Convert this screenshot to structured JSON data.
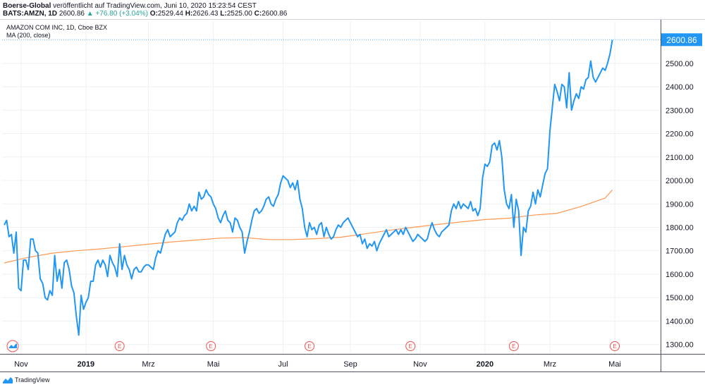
{
  "header": {
    "publisher": "Boerse-Global",
    "published_text": "veröffentlicht auf TradingView.com, Juni 10, 2020 15:23:54 CEST",
    "symbol": "BATS:AMZN, 1D",
    "last": "2600.86",
    "change": "▲ +76.80 (+3.04%)",
    "o_label": "O:",
    "o_value": "2529.44",
    "h_label": "H:",
    "h_value": "2626.43",
    "l_label": "L:",
    "l_value": "2525.00",
    "c_label": "C:",
    "c_value": "2600.86"
  },
  "legend": {
    "title": "AMAZON COM INC, 1D, Cboe BZX",
    "indicator": "MA (200, close)"
  },
  "footer": {
    "brand": "TradingView"
  },
  "colors": {
    "price_line": "#2196f3",
    "ma_line": "#ff9850",
    "price_badge": "#2196f3",
    "earnings": "#ef5350",
    "grid": "#eef0f3"
  },
  "chart_data": {
    "type": "line",
    "ylim": [
      1260,
      2680
    ],
    "xlim": [
      0,
      271
    ],
    "yticks": [
      "1300.00",
      "1400.00",
      "1500.00",
      "1600.00",
      "1700.00",
      "1800.00",
      "1900.00",
      "2000.00",
      "2100.00",
      "2200.00",
      "2300.00",
      "2400.00",
      "2500.00"
    ],
    "ytick_values": [
      1300,
      1400,
      1500,
      1600,
      1700,
      1800,
      1900,
      2000,
      2100,
      2200,
      2300,
      2400,
      2500
    ],
    "xticks": [
      {
        "label": "Nov",
        "x": 7,
        "bold": false
      },
      {
        "label": "2019",
        "x": 34,
        "bold": true
      },
      {
        "label": "Mrz",
        "x": 60,
        "bold": false
      },
      {
        "label": "Mai",
        "x": 87,
        "bold": false
      },
      {
        "label": "Jul",
        "x": 116,
        "bold": false
      },
      {
        "label": "Sep",
        "x": 144,
        "bold": false
      },
      {
        "label": "Nov",
        "x": 173,
        "bold": false
      },
      {
        "label": "2020",
        "x": 200,
        "bold": true
      },
      {
        "label": "Mrz",
        "x": 227,
        "bold": false
      },
      {
        "label": "Mai",
        "x": 254,
        "bold": false
      }
    ],
    "earnings_markers": [
      48,
      86,
      127,
      169,
      212,
      254
    ],
    "earnings_label": "E",
    "last_price_label": "2600.86",
    "last_price": 2600.86,
    "series": [
      {
        "name": "AMZN",
        "points": [
          [
            0,
            1810
          ],
          [
            1,
            1830
          ],
          [
            2,
            1760
          ],
          [
            3,
            1770
          ],
          [
            4,
            1690
          ],
          [
            5,
            1780
          ],
          [
            6,
            1540
          ],
          [
            7,
            1530
          ],
          [
            8,
            1660
          ],
          [
            9,
            1660
          ],
          [
            10,
            1620
          ],
          [
            11,
            1750
          ],
          [
            12,
            1750
          ],
          [
            13,
            1700
          ],
          [
            14,
            1690
          ],
          [
            15,
            1580
          ],
          [
            16,
            1560
          ],
          [
            17,
            1500
          ],
          [
            18,
            1490
          ],
          [
            19,
            1530
          ],
          [
            20,
            1510
          ],
          [
            21,
            1680
          ],
          [
            22,
            1570
          ],
          [
            23,
            1620
          ],
          [
            24,
            1540
          ],
          [
            25,
            1650
          ],
          [
            26,
            1660
          ],
          [
            27,
            1620
          ],
          [
            28,
            1550
          ],
          [
            29,
            1520
          ],
          [
            30,
            1420
          ],
          [
            31,
            1340
          ],
          [
            32,
            1510
          ],
          [
            33,
            1450
          ],
          [
            34,
            1480
          ],
          [
            35,
            1500
          ],
          [
            36,
            1570
          ],
          [
            37,
            1570
          ],
          [
            38,
            1640
          ],
          [
            39,
            1660
          ],
          [
            40,
            1630
          ],
          [
            41,
            1660
          ],
          [
            42,
            1640
          ],
          [
            43,
            1590
          ],
          [
            44,
            1680
          ],
          [
            45,
            1650
          ],
          [
            46,
            1630
          ],
          [
            47,
            1590
          ],
          [
            48,
            1730
          ],
          [
            49,
            1620
          ],
          [
            50,
            1680
          ],
          [
            51,
            1640
          ],
          [
            52,
            1620
          ],
          [
            53,
            1580
          ],
          [
            54,
            1620
          ],
          [
            55,
            1630
          ],
          [
            56,
            1610
          ],
          [
            57,
            1610
          ],
          [
            58,
            1630
          ],
          [
            59,
            1640
          ],
          [
            60,
            1640
          ],
          [
            61,
            1630
          ],
          [
            62,
            1620
          ],
          [
            63,
            1670
          ],
          [
            64,
            1700
          ],
          [
            65,
            1690
          ],
          [
            66,
            1730
          ],
          [
            67,
            1770
          ],
          [
            68,
            1790
          ],
          [
            69,
            1760
          ],
          [
            70,
            1770
          ],
          [
            71,
            1780
          ],
          [
            72,
            1820
          ],
          [
            73,
            1840
          ],
          [
            74,
            1830
          ],
          [
            75,
            1850
          ],
          [
            76,
            1860
          ],
          [
            77,
            1900
          ],
          [
            78,
            1870
          ],
          [
            79,
            1890
          ],
          [
            80,
            1870
          ],
          [
            81,
            1950
          ],
          [
            82,
            1920
          ],
          [
            83,
            1930
          ],
          [
            84,
            1960
          ],
          [
            85,
            1940
          ],
          [
            86,
            1930
          ],
          [
            87,
            1900
          ],
          [
            88,
            1880
          ],
          [
            89,
            1840
          ],
          [
            90,
            1820
          ],
          [
            91,
            1850
          ],
          [
            92,
            1870
          ],
          [
            93,
            1830
          ],
          [
            94,
            1820
          ],
          [
            95,
            1780
          ],
          [
            96,
            1840
          ],
          [
            97,
            1830
          ],
          [
            98,
            1800
          ],
          [
            99,
            1780
          ],
          [
            100,
            1690
          ],
          [
            101,
            1740
          ],
          [
            102,
            1780
          ],
          [
            103,
            1830
          ],
          [
            104,
            1870
          ],
          [
            105,
            1880
          ],
          [
            106,
            1860
          ],
          [
            107,
            1870
          ],
          [
            108,
            1890
          ],
          [
            109,
            1920
          ],
          [
            110,
            1930
          ],
          [
            111,
            1900
          ],
          [
            112,
            1890
          ],
          [
            113,
            1920
          ],
          [
            114,
            1940
          ],
          [
            115,
            1990
          ],
          [
            116,
            2020
          ],
          [
            117,
            2010
          ],
          [
            118,
            2000
          ],
          [
            119,
            1970
          ],
          [
            120,
            1990
          ],
          [
            121,
            1960
          ],
          [
            122,
            2000
          ],
          [
            123,
            1920
          ],
          [
            124,
            1880
          ],
          [
            125,
            1800
          ],
          [
            126,
            1760
          ],
          [
            127,
            1820
          ],
          [
            128,
            1790
          ],
          [
            129,
            1800
          ],
          [
            130,
            1770
          ],
          [
            131,
            1810
          ],
          [
            132,
            1820
          ],
          [
            133,
            1760
          ],
          [
            134,
            1800
          ],
          [
            135,
            1770
          ],
          [
            136,
            1750
          ],
          [
            137,
            1760
          ],
          [
            138,
            1790
          ],
          [
            139,
            1810
          ],
          [
            140,
            1800
          ],
          [
            141,
            1820
          ],
          [
            142,
            1830
          ],
          [
            143,
            1840
          ],
          [
            144,
            1820
          ],
          [
            145,
            1800
          ],
          [
            146,
            1780
          ],
          [
            147,
            1760
          ],
          [
            148,
            1770
          ],
          [
            149,
            1730
          ],
          [
            150,
            1750
          ],
          [
            151,
            1710
          ],
          [
            152,
            1730
          ],
          [
            153,
            1720
          ],
          [
            154,
            1740
          ],
          [
            155,
            1700
          ],
          [
            156,
            1730
          ],
          [
            157,
            1750
          ],
          [
            158,
            1770
          ],
          [
            159,
            1790
          ],
          [
            160,
            1760
          ],
          [
            161,
            1770
          ],
          [
            162,
            1780
          ],
          [
            163,
            1790
          ],
          [
            164,
            1770
          ],
          [
            165,
            1790
          ],
          [
            166,
            1770
          ],
          [
            167,
            1800
          ],
          [
            168,
            1780
          ],
          [
            169,
            1760
          ],
          [
            170,
            1740
          ],
          [
            171,
            1750
          ],
          [
            172,
            1770
          ],
          [
            173,
            1760
          ],
          [
            174,
            1750
          ],
          [
            175,
            1740
          ],
          [
            176,
            1750
          ],
          [
            177,
            1790
          ],
          [
            178,
            1820
          ],
          [
            179,
            1790
          ],
          [
            180,
            1770
          ],
          [
            181,
            1760
          ],
          [
            182,
            1780
          ],
          [
            183,
            1790
          ],
          [
            184,
            1800
          ],
          [
            185,
            1810
          ],
          [
            186,
            1870
          ],
          [
            187,
            1900
          ],
          [
            188,
            1880
          ],
          [
            189,
            1910
          ],
          [
            190,
            1880
          ],
          [
            191,
            1900
          ],
          [
            192,
            1890
          ],
          [
            193,
            1880
          ],
          [
            194,
            1910
          ],
          [
            195,
            1870
          ],
          [
            196,
            1880
          ],
          [
            197,
            1850
          ],
          [
            198,
            1880
          ],
          [
            199,
            2010
          ],
          [
            200,
            2070
          ],
          [
            201,
            2060
          ],
          [
            202,
            2080
          ],
          [
            203,
            2150
          ],
          [
            204,
            2160
          ],
          [
            205,
            2130
          ],
          [
            206,
            2170
          ],
          [
            207,
            2100
          ],
          [
            208,
            1960
          ],
          [
            209,
            1900
          ],
          [
            210,
            1880
          ],
          [
            211,
            1940
          ],
          [
            212,
            1800
          ],
          [
            213,
            1920
          ],
          [
            214,
            1870
          ],
          [
            215,
            1680
          ],
          [
            216,
            1800
          ],
          [
            217,
            1780
          ],
          [
            218,
            1870
          ],
          [
            219,
            1890
          ],
          [
            220,
            1950
          ],
          [
            221,
            1900
          ],
          [
            222,
            1960
          ],
          [
            223,
            1930
          ],
          [
            224,
            1980
          ],
          [
            225,
            2030
          ],
          [
            226,
            2050
          ],
          [
            227,
            2210
          ],
          [
            228,
            2310
          ],
          [
            229,
            2410
          ],
          [
            230,
            2380
          ],
          [
            231,
            2340
          ],
          [
            232,
            2410
          ],
          [
            233,
            2400
          ],
          [
            234,
            2310
          ],
          [
            235,
            2460
          ],
          [
            236,
            2300
          ],
          [
            237,
            2340
          ],
          [
            238,
            2370
          ],
          [
            239,
            2350
          ],
          [
            240,
            2400
          ],
          [
            241,
            2390
          ],
          [
            242,
            2430
          ],
          [
            243,
            2440
          ],
          [
            244,
            2510
          ],
          [
            245,
            2440
          ],
          [
            246,
            2420
          ],
          [
            247,
            2440
          ],
          [
            248,
            2460
          ],
          [
            249,
            2480
          ],
          [
            250,
            2470
          ],
          [
            251,
            2500
          ],
          [
            252,
            2540
          ],
          [
            253,
            2600
          ]
        ]
      },
      {
        "name": "MA (200, close)",
        "points": [
          [
            0,
            1648
          ],
          [
            10,
            1672
          ],
          [
            20,
            1690
          ],
          [
            30,
            1700
          ],
          [
            40,
            1708
          ],
          [
            50,
            1718
          ],
          [
            60,
            1728
          ],
          [
            70,
            1738
          ],
          [
            80,
            1746
          ],
          [
            90,
            1754
          ],
          [
            100,
            1756
          ],
          [
            110,
            1748
          ],
          [
            120,
            1748
          ],
          [
            130,
            1752
          ],
          [
            140,
            1758
          ],
          [
            150,
            1772
          ],
          [
            160,
            1787
          ],
          [
            170,
            1800
          ],
          [
            180,
            1812
          ],
          [
            190,
            1823
          ],
          [
            200,
            1833
          ],
          [
            210,
            1839
          ],
          [
            220,
            1852
          ],
          [
            230,
            1860
          ],
          [
            240,
            1889
          ],
          [
            250,
            1925
          ],
          [
            253,
            1960
          ]
        ]
      }
    ]
  }
}
